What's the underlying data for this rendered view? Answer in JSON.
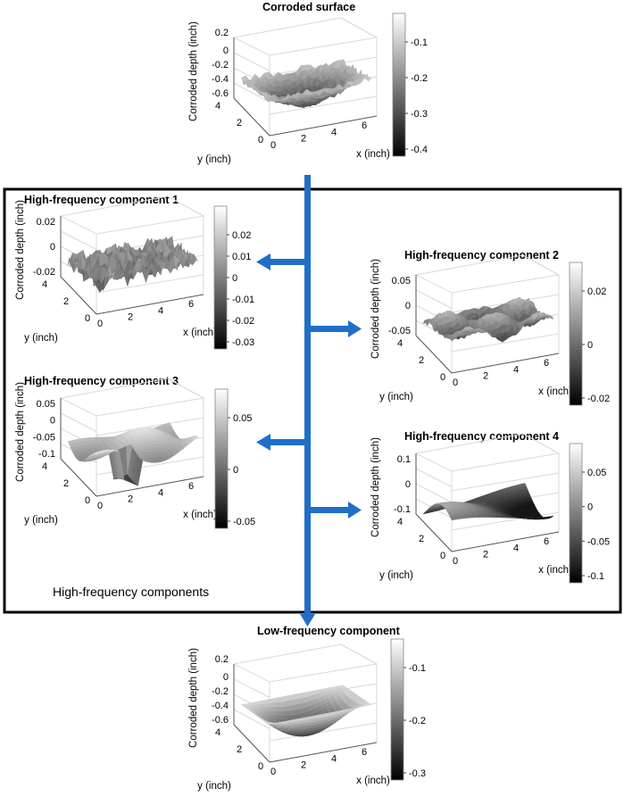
{
  "plots": [
    {
      "id": "p0",
      "title": "Corroded surface",
      "zlabel": "Corroded depth (inch)",
      "xlabel": "x (inch)",
      "ylabel": "y (inch)",
      "zticks": [
        "0",
        "-0.2",
        "-0.4",
        "-0.6"
      ],
      "zticks_top": "0.2",
      "xticks": [
        "0",
        "2",
        "4",
        "6"
      ],
      "yticks": [
        "4",
        "2",
        "0"
      ],
      "cbar_ticks": [
        "-0.1",
        "-0.2",
        "-0.3",
        "-0.4"
      ]
    },
    {
      "id": "p1",
      "title": "High-frequency component 1",
      "zlabel": "Corroded depth (inch)",
      "xlabel": "x (inch)",
      "ylabel": "y (inch)",
      "zticks": [
        "0.02",
        "0",
        "-0.02"
      ],
      "xticks": [
        "0",
        "2",
        "4",
        "6"
      ],
      "yticks": [
        "4",
        "2",
        "0"
      ],
      "cbar_ticks": [
        "0.02",
        "0.01",
        "0",
        "-0.01",
        "-0.02",
        "-0.03"
      ]
    },
    {
      "id": "p2",
      "title": "High-frequency component 2",
      "zlabel": "Corroded depth (inch)",
      "xlabel": "x (inch)",
      "ylabel": "y (inch)",
      "zticks": [
        "0.05",
        "0",
        "-0.05"
      ],
      "xticks": [
        "0",
        "2",
        "4",
        "6"
      ],
      "yticks": [
        "4",
        "2",
        "0"
      ],
      "cbar_ticks": [
        "0.02",
        "0",
        "-0.02"
      ]
    },
    {
      "id": "p3",
      "title": "High-frequency component 3",
      "zlabel": "Corroded depth (inch)",
      "xlabel": "x (inch)",
      "ylabel": "y (inch)",
      "zticks": [
        "0.05",
        "0",
        "-0.05",
        "-0.1"
      ],
      "xticks": [
        "0",
        "2",
        "4",
        "6"
      ],
      "yticks": [
        "4",
        "2",
        "0"
      ],
      "cbar_ticks": [
        "0.05",
        "0",
        "-0.05"
      ]
    },
    {
      "id": "p4",
      "title": "High-frequency component 4",
      "zlabel": "Corroded depth (inch)",
      "xlabel": "x (inch)",
      "ylabel": "y (inch)",
      "zticks": [
        "0.1",
        "0",
        "-0.1"
      ],
      "xticks": [
        "0",
        "2",
        "4",
        "6"
      ],
      "yticks": [
        "4",
        "2",
        "0"
      ],
      "cbar_ticks": [
        "0.05",
        "0",
        "-0.05",
        "-0.1"
      ]
    },
    {
      "id": "p5",
      "title": "Low-frequency component",
      "zlabel": "Corroded depth (inch)",
      "xlabel": "x (inch)",
      "ylabel": "y (inch)",
      "zticks": [
        "0",
        "-0.2",
        "-0.4",
        "-0.6"
      ],
      "zticks_top": "0.2",
      "xticks": [
        "0",
        "2",
        "4",
        "6"
      ],
      "yticks": [
        "4",
        "2",
        "0"
      ],
      "cbar_ticks": [
        "-0.1",
        "-0.2",
        "-0.3"
      ]
    }
  ],
  "frame_label": "High-frequency components",
  "colors": {
    "arrow": "#1f6fc9",
    "frame": "#000000",
    "grid": "#d9d9d9"
  }
}
